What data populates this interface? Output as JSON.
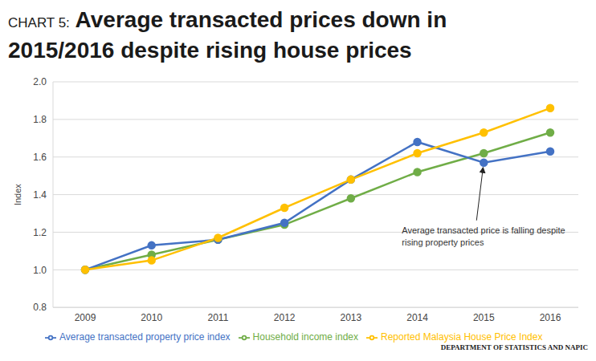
{
  "chart_data": {
    "type": "line",
    "title": "CHART 5: Average transacted prices down in 2015/2016 despite rising house prices",
    "y_label": "Index",
    "source": "DEPARTMENT OF STATISTICS AND NAPIC",
    "categories": [
      "2009",
      "2010",
      "2011",
      "2012",
      "2013",
      "2014",
      "2015",
      "2016"
    ],
    "series": [
      {
        "name": "Household income index",
        "color": "#70ad47",
        "values": [
          1.0,
          1.08,
          1.16,
          1.24,
          1.38,
          1.52,
          1.62,
          1.73
        ]
      },
      {
        "name": "Average transacted property price index",
        "color": "#4472c4",
        "values": [
          1.0,
          1.13,
          1.16,
          1.25,
          1.48,
          1.68,
          1.57,
          1.63
        ]
      },
      {
        "name": "Reported Malaysia House Price Index",
        "color": "#ffc000",
        "values": [
          1.0,
          1.05,
          1.17,
          1.33,
          1.48,
          1.62,
          1.73,
          1.86
        ]
      }
    ],
    "ylim": [
      0.8,
      2.0
    ],
    "yticks": [
      0.8,
      {
        "value": 1.0,
        "label": "1.0"
      },
      1.2,
      1.4,
      1.6,
      1.8,
      {
        "value": 2.0,
        "label": "2.0"
      }
    ],
    "grid": true,
    "legend": "bottom",
    "marker": "circle",
    "annotations": [
      {
        "text": "Average transacted price is falling despite rising property prices",
        "x": "2015",
        "y": 1.57
      }
    ]
  }
}
